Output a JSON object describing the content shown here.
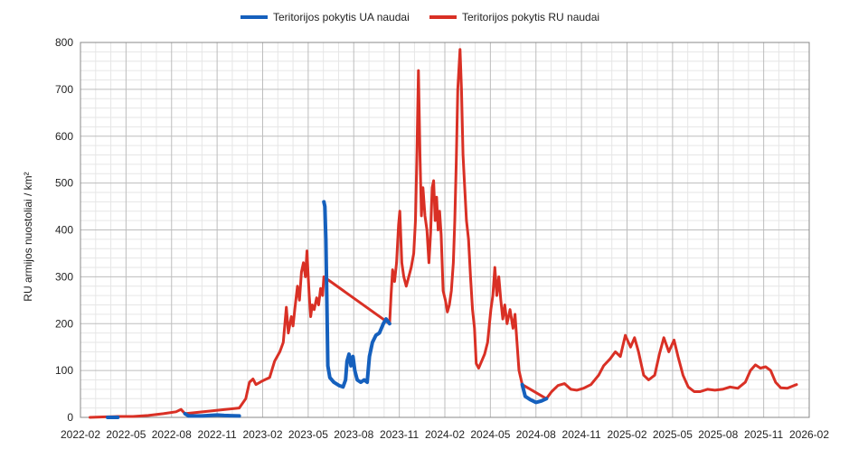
{
  "chart_data": {
    "type": "line",
    "title": "",
    "xlabel": "",
    "ylabel": "RU armijos nuostoliai / km²",
    "ylim": [
      0,
      800
    ],
    "xlim": [
      "2022-02",
      "2026-02"
    ],
    "grid": true,
    "legend_position": "top-center",
    "y_ticks": [
      "0",
      "100",
      "200",
      "300",
      "400",
      "500",
      "600",
      "700",
      "800"
    ],
    "x_ticks": [
      "2022-02",
      "2022-05",
      "2022-08",
      "2022-11",
      "2023-02",
      "2023-05",
      "2023-08",
      "2023-11",
      "2024-02",
      "2024-05",
      "2024-08",
      "2024-11",
      "2025-02",
      "2025-05",
      "2025-08",
      "2025-11",
      "2026-02"
    ],
    "legend": [
      {
        "name": "Teritorijos pokytis UA naudai",
        "color": "#1560bd"
      },
      {
        "name": "Teritorijos pokytis RU naudai",
        "color": "#d93025"
      }
    ],
    "series": [
      {
        "name": "Teritorijos pokytis RU naudai",
        "color": "#d93025",
        "points": [
          [
            "2022-02-20",
            0
          ],
          [
            "2022-03-15",
            1
          ],
          [
            "2022-04-15",
            2
          ],
          [
            "2022-05-15",
            2
          ],
          [
            "2022-06-15",
            4
          ],
          [
            "2022-07-15",
            8
          ],
          [
            "2022-08-10",
            12
          ],
          [
            "2022-08-20",
            17
          ],
          [
            "2022-08-28",
            8
          ],
          [
            "2022-12-15",
            20
          ],
          [
            "2022-12-28",
            40
          ],
          [
            "2023-01-05",
            75
          ],
          [
            "2023-01-12",
            82
          ],
          [
            "2023-01-18",
            70
          ],
          [
            "2023-02-01",
            78
          ],
          [
            "2023-02-15",
            85
          ],
          [
            "2023-02-25",
            120
          ],
          [
            "2023-03-05",
            140
          ],
          [
            "2023-03-12",
            160
          ],
          [
            "2023-03-18",
            235
          ],
          [
            "2023-03-22",
            180
          ],
          [
            "2023-03-28",
            215
          ],
          [
            "2023-04-01",
            195
          ],
          [
            "2023-04-05",
            235
          ],
          [
            "2023-04-10",
            280
          ],
          [
            "2023-04-14",
            250
          ],
          [
            "2023-04-18",
            310
          ],
          [
            "2023-04-22",
            330
          ],
          [
            "2023-04-26",
            300
          ],
          [
            "2023-04-29",
            355
          ],
          [
            "2023-05-01",
            300
          ],
          [
            "2023-05-03",
            260
          ],
          [
            "2023-05-06",
            215
          ],
          [
            "2023-05-09",
            240
          ],
          [
            "2023-05-13",
            230
          ],
          [
            "2023-05-18",
            255
          ],
          [
            "2023-05-22",
            240
          ],
          [
            "2023-05-26",
            275
          ],
          [
            "2023-05-30",
            260
          ],
          [
            "2023-06-02",
            300
          ],
          [
            "2023-10-12",
            200
          ],
          [
            "2023-10-15",
            260
          ],
          [
            "2023-10-18",
            315
          ],
          [
            "2023-10-22",
            290
          ],
          [
            "2023-10-26",
            330
          ],
          [
            "2023-10-30",
            410
          ],
          [
            "2023-11-02",
            440
          ],
          [
            "2023-11-06",
            330
          ],
          [
            "2023-11-10",
            300
          ],
          [
            "2023-11-15",
            280
          ],
          [
            "2023-11-20",
            300
          ],
          [
            "2023-11-25",
            320
          ],
          [
            "2023-11-30",
            350
          ],
          [
            "2023-12-03",
            420
          ],
          [
            "2023-12-06",
            570
          ],
          [
            "2023-12-09",
            740
          ],
          [
            "2023-12-12",
            560
          ],
          [
            "2023-12-15",
            430
          ],
          [
            "2023-12-18",
            490
          ],
          [
            "2023-12-22",
            430
          ],
          [
            "2023-12-26",
            400
          ],
          [
            "2023-12-30",
            330
          ],
          [
            "2024-01-03",
            395
          ],
          [
            "2024-01-06",
            490
          ],
          [
            "2024-01-09",
            505
          ],
          [
            "2024-01-12",
            420
          ],
          [
            "2024-01-15",
            470
          ],
          [
            "2024-01-18",
            400
          ],
          [
            "2024-01-21",
            440
          ],
          [
            "2024-01-24",
            390
          ],
          [
            "2024-01-28",
            270
          ],
          [
            "2024-02-02",
            250
          ],
          [
            "2024-02-06",
            225
          ],
          [
            "2024-02-10",
            240
          ],
          [
            "2024-02-14",
            270
          ],
          [
            "2024-02-18",
            330
          ],
          [
            "2024-02-21",
            420
          ],
          [
            "2024-02-24",
            550
          ],
          [
            "2024-02-27",
            700
          ],
          [
            "2024-03-01",
            785
          ],
          [
            "2024-03-04",
            700
          ],
          [
            "2024-03-07",
            560
          ],
          [
            "2024-03-10",
            500
          ],
          [
            "2024-03-14",
            420
          ],
          [
            "2024-03-18",
            380
          ],
          [
            "2024-03-22",
            300
          ],
          [
            "2024-03-26",
            230
          ],
          [
            "2024-03-30",
            190
          ],
          [
            "2024-04-03",
            115
          ],
          [
            "2024-04-08",
            105
          ],
          [
            "2024-04-14",
            120
          ],
          [
            "2024-04-20",
            135
          ],
          [
            "2024-04-26",
            160
          ],
          [
            "2024-05-02",
            230
          ],
          [
            "2024-05-06",
            260
          ],
          [
            "2024-05-10",
            320
          ],
          [
            "2024-05-14",
            260
          ],
          [
            "2024-05-18",
            300
          ],
          [
            "2024-05-22",
            250
          ],
          [
            "2024-05-26",
            210
          ],
          [
            "2024-05-30",
            240
          ],
          [
            "2024-06-04",
            200
          ],
          [
            "2024-06-10",
            230
          ],
          [
            "2024-06-16",
            190
          ],
          [
            "2024-06-20",
            220
          ],
          [
            "2024-06-24",
            160
          ],
          [
            "2024-06-28",
            100
          ],
          [
            "2024-07-04",
            70
          ],
          [
            "2024-08-22",
            40
          ],
          [
            "2024-09-02",
            55
          ],
          [
            "2024-09-15",
            68
          ],
          [
            "2024-09-28",
            72
          ],
          [
            "2024-10-10",
            60
          ],
          [
            "2024-10-22",
            58
          ],
          [
            "2024-11-05",
            62
          ],
          [
            "2024-11-20",
            70
          ],
          [
            "2024-12-05",
            90
          ],
          [
            "2024-12-15",
            110
          ],
          [
            "2024-12-28",
            125
          ],
          [
            "2025-01-08",
            140
          ],
          [
            "2025-01-18",
            130
          ],
          [
            "2025-01-28",
            175
          ],
          [
            "2025-02-08",
            150
          ],
          [
            "2025-02-16",
            170
          ],
          [
            "2025-02-24",
            140
          ],
          [
            "2025-03-04",
            90
          ],
          [
            "2025-03-14",
            80
          ],
          [
            "2025-03-26",
            90
          ],
          [
            "2025-04-05",
            135
          ],
          [
            "2025-04-14",
            170
          ],
          [
            "2025-04-24",
            140
          ],
          [
            "2025-05-04",
            165
          ],
          [
            "2025-05-12",
            130
          ],
          [
            "2025-05-22",
            90
          ],
          [
            "2025-06-02",
            65
          ],
          [
            "2025-06-14",
            55
          ],
          [
            "2025-06-26",
            55
          ],
          [
            "2025-07-10",
            60
          ],
          [
            "2025-07-25",
            58
          ],
          [
            "2025-08-10",
            60
          ],
          [
            "2025-08-25",
            65
          ],
          [
            "2025-09-10",
            62
          ],
          [
            "2025-09-25",
            75
          ],
          [
            "2025-10-05",
            100
          ],
          [
            "2025-10-15",
            112
          ],
          [
            "2025-10-25",
            105
          ],
          [
            "2025-11-05",
            108
          ],
          [
            "2025-11-15",
            100
          ],
          [
            "2025-11-25",
            75
          ],
          [
            "2025-12-05",
            63
          ],
          [
            "2025-12-18",
            62
          ],
          [
            "2026-01-01",
            68
          ],
          [
            "2026-01-06",
            70
          ]
        ]
      },
      {
        "name": "Teritorijos pokytis UA naudai",
        "color": "#1560bd",
        "segments": [
          [
            [
              "2022-03-25",
              0
            ],
            [
              "2022-04-15",
              0
            ]
          ],
          [
            [
              "2022-08-28",
              8
            ],
            [
              "2022-09-05",
              3
            ],
            [
              "2022-10-01",
              3
            ],
            [
              "2022-11-01",
              5
            ],
            [
              "2022-11-15",
              4
            ],
            [
              "2022-12-15",
              3
            ]
          ],
          [
            [
              "2023-06-02",
              460
            ],
            [
              "2023-06-04",
              450
            ],
            [
              "2023-06-06",
              380
            ],
            [
              "2023-06-08",
              250
            ],
            [
              "2023-06-10",
              110
            ],
            [
              "2023-06-14",
              85
            ],
            [
              "2023-06-22",
              75
            ],
            [
              "2023-07-02",
              68
            ],
            [
              "2023-07-10",
              65
            ],
            [
              "2023-07-15",
              80
            ],
            [
              "2023-07-18",
              120
            ],
            [
              "2023-07-22",
              135
            ],
            [
              "2023-07-26",
              110
            ],
            [
              "2023-07-30",
              130
            ],
            [
              "2023-08-03",
              100
            ],
            [
              "2023-08-08",
              80
            ],
            [
              "2023-08-15",
              75
            ],
            [
              "2023-08-22",
              80
            ],
            [
              "2023-08-28",
              75
            ],
            [
              "2023-09-02",
              130
            ],
            [
              "2023-09-08",
              160
            ],
            [
              "2023-09-15",
              175
            ],
            [
              "2023-09-22",
              180
            ],
            [
              "2023-09-30",
              200
            ],
            [
              "2023-10-05",
              210
            ],
            [
              "2023-10-12",
              200
            ]
          ],
          [
            [
              "2024-07-04",
              70
            ],
            [
              "2024-07-10",
              45
            ],
            [
              "2024-07-20",
              38
            ],
            [
              "2024-08-01",
              32
            ],
            [
              "2024-08-12",
              35
            ],
            [
              "2024-08-22",
              40
            ]
          ]
        ]
      }
    ]
  }
}
